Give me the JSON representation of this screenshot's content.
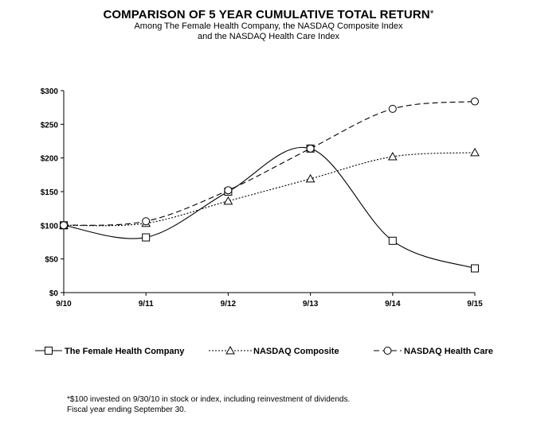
{
  "title": "COMPARISON OF 5 YEAR CUMULATIVE TOTAL RETURN",
  "title_marker": "*",
  "subtitle_line1": "Among The Female Health Company, the NASDAQ Composite Index",
  "subtitle_line2": "and the NASDAQ Health Care Index",
  "footnote_line1": "*$100 invested on 9/30/10 in stock or index, including reinvestment of dividends.",
  "footnote_line2": "Fiscal year ending September 30.",
  "chart_data": {
    "type": "line",
    "categories": [
      "9/10",
      "9/11",
      "9/12",
      "9/13",
      "9/14",
      "9/15"
    ],
    "ylim": [
      0,
      300
    ],
    "yticks": [
      0,
      50,
      100,
      150,
      200,
      250,
      300
    ],
    "ytick_labels": [
      "$0",
      "$50",
      "$100",
      "$150",
      "$200",
      "$250",
      "$300"
    ],
    "grid": false,
    "legend_position": "bottom",
    "series": [
      {
        "name": "The Female Health Company",
        "values": [
          100,
          82,
          150,
          214,
          77,
          36
        ],
        "marker": "square",
        "dash": "solid",
        "color": "#000000"
      },
      {
        "name": "NASDAQ Composite",
        "values": [
          100,
          103,
          136,
          169,
          202,
          208
        ],
        "marker": "triangle",
        "dash": "dotted",
        "color": "#000000"
      },
      {
        "name": "NASDAQ Health Care",
        "values": [
          100,
          106,
          152,
          214,
          273,
          284
        ],
        "marker": "circle",
        "dash": "dashed",
        "color": "#000000"
      }
    ]
  }
}
